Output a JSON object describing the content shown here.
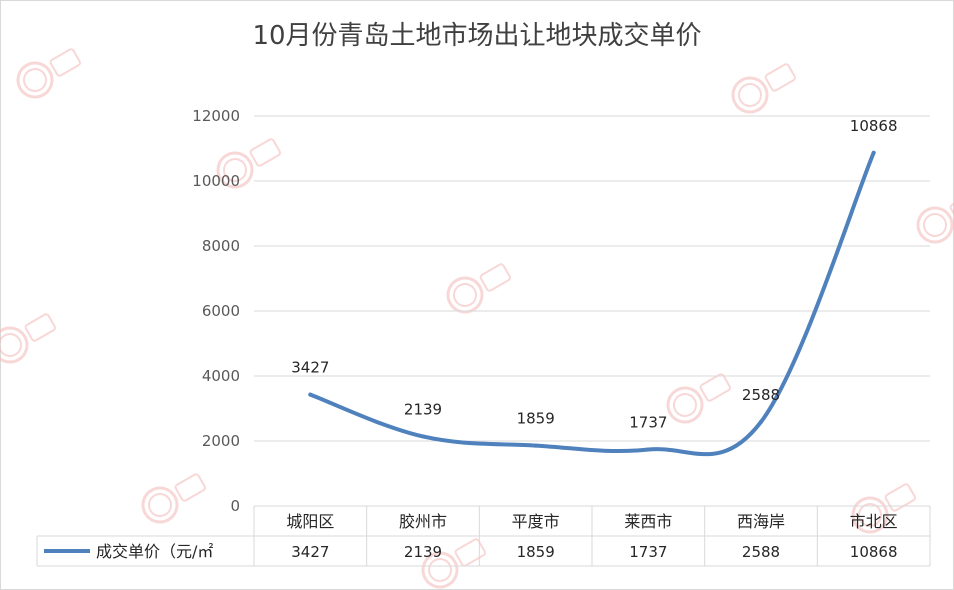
{
  "chart_data": {
    "type": "line",
    "title": "10月份青岛土地市场出让地块成交单价",
    "categories": [
      "城阳区",
      "胶州市",
      "平度市",
      "莱西市",
      "西海岸",
      "市北区"
    ],
    "series": [
      {
        "name": "成交单价（元/㎡",
        "values": [
          3427,
          2139,
          1859,
          1737,
          2588,
          10868
        ],
        "color": "#4f81bd"
      }
    ],
    "yticks": [
      0,
      2000,
      4000,
      6000,
      8000,
      10000,
      12000
    ],
    "ylim": [
      0,
      12000
    ],
    "grid": true,
    "data_table": true,
    "legend_position": "data-table"
  },
  "colors": {
    "line": "#4f81bd",
    "grid": "#d9d9d9",
    "watermark": "#f4b8b8"
  }
}
